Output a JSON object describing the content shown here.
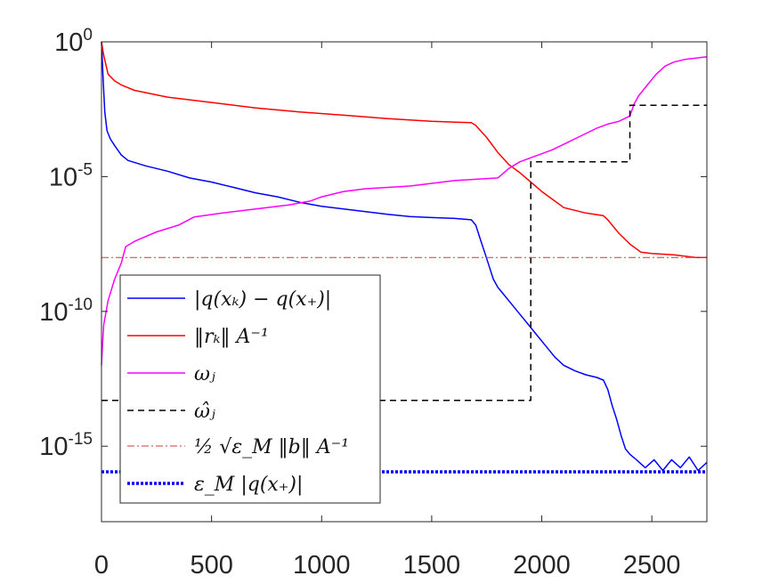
{
  "chart_data": {
    "type": "line",
    "title": "",
    "xlabel": "",
    "ylabel": "",
    "xlim": [
      0,
      2750
    ],
    "ylim_log10": [
      -17.8,
      0
    ],
    "yscale": "log",
    "grid": false,
    "legend_position": "bottom-left",
    "x_ticks": [
      {
        "value": 0,
        "label": "0"
      },
      {
        "value": 500,
        "label": "500"
      },
      {
        "value": 1000,
        "label": "1000"
      },
      {
        "value": 1500,
        "label": "1500"
      },
      {
        "value": 2000,
        "label": "2000"
      },
      {
        "value": 2500,
        "label": "2500"
      }
    ],
    "y_ticks": [
      {
        "log10": 0,
        "base": "10",
        "exp": "0"
      },
      {
        "log10": -5,
        "base": "10",
        "exp": "-5"
      },
      {
        "log10": -10,
        "base": "10",
        "exp": "-10"
      },
      {
        "log10": -15,
        "base": "10",
        "exp": "-15"
      }
    ],
    "series": [
      {
        "name": "|q(x_k) - q(x_*)|",
        "legend_label": "|q(xₖ) − q(x₊)|",
        "color": "#0000ff",
        "style": "solid",
        "points": [
          [
            0,
            0
          ],
          [
            8,
            -1.5
          ],
          [
            15,
            -2.6
          ],
          [
            25,
            -3.3
          ],
          [
            40,
            -3.6
          ],
          [
            60,
            -3.85
          ],
          [
            90,
            -4.2
          ],
          [
            120,
            -4.4
          ],
          [
            200,
            -4.6
          ],
          [
            300,
            -4.8
          ],
          [
            400,
            -5.05
          ],
          [
            500,
            -5.2
          ],
          [
            600,
            -5.4
          ],
          [
            700,
            -5.6
          ],
          [
            800,
            -5.75
          ],
          [
            900,
            -5.95
          ],
          [
            1000,
            -6.1
          ],
          [
            1100,
            -6.2
          ],
          [
            1200,
            -6.3
          ],
          [
            1300,
            -6.4
          ],
          [
            1400,
            -6.48
          ],
          [
            1500,
            -6.52
          ],
          [
            1600,
            -6.55
          ],
          [
            1680,
            -6.6
          ],
          [
            1700,
            -6.8
          ],
          [
            1720,
            -7.3
          ],
          [
            1740,
            -7.8
          ],
          [
            1760,
            -8.3
          ],
          [
            1780,
            -8.8
          ],
          [
            1800,
            -9.1
          ],
          [
            1830,
            -9.4
          ],
          [
            1860,
            -9.7
          ],
          [
            1900,
            -10.1
          ],
          [
            1940,
            -10.5
          ],
          [
            1980,
            -10.9
          ],
          [
            2020,
            -11.3
          ],
          [
            2060,
            -11.7
          ],
          [
            2100,
            -12.0
          ],
          [
            2150,
            -12.2
          ],
          [
            2200,
            -12.35
          ],
          [
            2250,
            -12.45
          ],
          [
            2280,
            -12.55
          ],
          [
            2300,
            -12.9
          ],
          [
            2320,
            -13.5
          ],
          [
            2340,
            -14.0
          ],
          [
            2360,
            -14.6
          ],
          [
            2380,
            -15.1
          ],
          [
            2400,
            -15.3
          ],
          [
            2430,
            -15.5
          ],
          [
            2470,
            -15.8
          ],
          [
            2510,
            -15.5
          ],
          [
            2550,
            -15.9
          ],
          [
            2590,
            -15.5
          ],
          [
            2630,
            -15.8
          ],
          [
            2670,
            -15.4
          ],
          [
            2710,
            -15.9
          ],
          [
            2750,
            -15.6
          ]
        ]
      },
      {
        "name": "||r_k||_{A^{-1}}",
        "legend_label": "‖rₖ‖ A⁻¹",
        "color": "#ff0000",
        "style": "solid",
        "points": [
          [
            0,
            0
          ],
          [
            10,
            -0.5
          ],
          [
            30,
            -1.2
          ],
          [
            60,
            -1.45
          ],
          [
            90,
            -1.6
          ],
          [
            150,
            -1.8
          ],
          [
            300,
            -2.05
          ],
          [
            500,
            -2.25
          ],
          [
            700,
            -2.45
          ],
          [
            900,
            -2.6
          ],
          [
            1100,
            -2.72
          ],
          [
            1300,
            -2.85
          ],
          [
            1500,
            -2.95
          ],
          [
            1680,
            -3.0
          ],
          [
            1700,
            -3.1
          ],
          [
            1750,
            -3.55
          ],
          [
            1800,
            -4.1
          ],
          [
            1850,
            -4.55
          ],
          [
            1900,
            -4.85
          ],
          [
            1950,
            -5.2
          ],
          [
            2000,
            -5.55
          ],
          [
            2050,
            -5.85
          ],
          [
            2100,
            -6.15
          ],
          [
            2200,
            -6.35
          ],
          [
            2280,
            -6.45
          ],
          [
            2300,
            -6.6
          ],
          [
            2350,
            -7.1
          ],
          [
            2400,
            -7.5
          ],
          [
            2450,
            -7.8
          ],
          [
            2500,
            -7.85
          ],
          [
            2600,
            -7.9
          ],
          [
            2700,
            -8.0
          ],
          [
            2750,
            -8.0
          ]
        ]
      },
      {
        "name": "omega_j",
        "legend_label": "ωⱼ",
        "color": "#ff00ff",
        "style": "solid",
        "points": [
          [
            0,
            -12
          ],
          [
            5,
            -11.2
          ],
          [
            10,
            -10.5
          ],
          [
            30,
            -9.6
          ],
          [
            60,
            -8.8
          ],
          [
            90,
            -8.2
          ],
          [
            110,
            -7.6
          ],
          [
            150,
            -7.4
          ],
          [
            250,
            -7.05
          ],
          [
            350,
            -6.8
          ],
          [
            420,
            -6.5
          ],
          [
            550,
            -6.35
          ],
          [
            700,
            -6.2
          ],
          [
            850,
            -6.05
          ],
          [
            950,
            -5.9
          ],
          [
            1000,
            -5.75
          ],
          [
            1100,
            -5.55
          ],
          [
            1200,
            -5.45
          ],
          [
            1300,
            -5.4
          ],
          [
            1400,
            -5.35
          ],
          [
            1500,
            -5.25
          ],
          [
            1600,
            -5.15
          ],
          [
            1700,
            -5.1
          ],
          [
            1800,
            -5.05
          ],
          [
            1850,
            -4.7
          ],
          [
            1900,
            -4.45
          ],
          [
            1950,
            -4.3
          ],
          [
            2000,
            -4.15
          ],
          [
            2050,
            -4.0
          ],
          [
            2100,
            -3.8
          ],
          [
            2150,
            -3.6
          ],
          [
            2200,
            -3.4
          ],
          [
            2250,
            -3.2
          ],
          [
            2300,
            -3.05
          ],
          [
            2350,
            -2.95
          ],
          [
            2400,
            -2.75
          ],
          [
            2420,
            -2.3
          ],
          [
            2440,
            -2.0
          ],
          [
            2480,
            -1.6
          ],
          [
            2520,
            -1.2
          ],
          [
            2560,
            -0.9
          ],
          [
            2600,
            -0.75
          ],
          [
            2650,
            -0.65
          ],
          [
            2700,
            -0.6
          ],
          [
            2750,
            -0.55
          ]
        ]
      },
      {
        "name": "omega_hat_j",
        "legend_label": "ω̂ⱼ",
        "color": "#000000",
        "style": "dashed",
        "points": [
          [
            0,
            -13.3
          ],
          [
            1950,
            -13.3
          ],
          [
            1950,
            -4.45
          ],
          [
            2400,
            -4.45
          ],
          [
            2400,
            -2.35
          ],
          [
            2750,
            -2.35
          ]
        ]
      },
      {
        "name": "1/2 sqrt(eps_M) ||b||_{A^{-1}}",
        "legend_label": "½ √ε_M ‖b‖ A⁻¹",
        "color": "#d43a3a",
        "style": "dashdot",
        "points": [
          [
            0,
            -8.0
          ],
          [
            2750,
            -8.0
          ]
        ]
      },
      {
        "name": "eps_M |q(x_*)|",
        "legend_label": "ε_M |q(x₊)|",
        "color": "#0000ff",
        "style": "dotted-thick",
        "points": [
          [
            0,
            -15.95
          ],
          [
            2750,
            -15.95
          ]
        ]
      }
    ]
  }
}
